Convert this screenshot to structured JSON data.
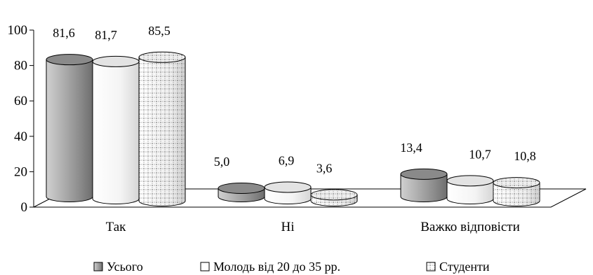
{
  "chart_data": {
    "type": "bar",
    "title": "",
    "xlabel": "",
    "ylabel": "",
    "ylim": [
      0,
      100
    ],
    "yticks": [
      0,
      20,
      40,
      60,
      80,
      100
    ],
    "categories": [
      "Так",
      "Ні",
      "Важко відповісти"
    ],
    "series": [
      {
        "name": "Усього",
        "values": [
          81.6,
          5.0,
          13.4
        ],
        "labels": [
          "81,6",
          "5,0",
          "13,4"
        ],
        "fill": "gray-gradient"
      },
      {
        "name": "Молодь від 20 до 35 рр.",
        "values": [
          81.7,
          6.9,
          10.7
        ],
        "labels": [
          "81,7",
          "6,9",
          "10,7"
        ],
        "fill": "white"
      },
      {
        "name": "Студенти",
        "values": [
          85.5,
          3.6,
          10.8
        ],
        "labels": [
          "85,5",
          "3,6",
          "10,8"
        ],
        "fill": "dotted-grid"
      }
    ],
    "legend_position": "bottom",
    "style": "3d-cylinders",
    "colors": {
      "dark": "#7f7f7f",
      "mid": "#b5b5b5",
      "light": "#e8e8e8",
      "outline": "#000000"
    }
  }
}
